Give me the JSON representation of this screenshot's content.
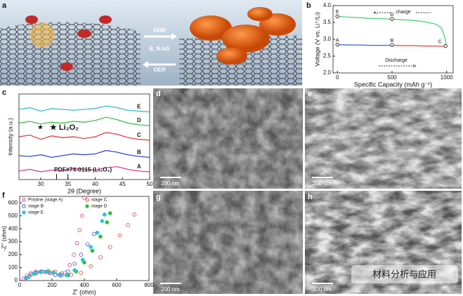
{
  "figure": {
    "labels": [
      "a",
      "b",
      "c",
      "d",
      "e",
      "f",
      "g",
      "h"
    ],
    "scheme": {
      "orr": "ORR",
      "bnbg": "B, N-bG",
      "oer": "OER"
    },
    "scale_bars": [
      "200 nm",
      "200 nm",
      "200 nm",
      "200 nm"
    ],
    "watermark": "材料分析与应用"
  },
  "chart_data": [
    {
      "type": "line",
      "xlabel": "Specific Capacity (mAh g⁻¹)",
      "ylabel": "Voltage (V vs. Li⁺/Li)",
      "xlim": [
        -40,
        1060
      ],
      "xticks": [
        0,
        500,
        1000
      ],
      "ylim": [
        2.0,
        4.0
      ],
      "yticks": [
        {
          "value": 2,
          "label": "2.0"
        },
        2.5,
        {
          "value": 3,
          "label": "3.0"
        },
        3.5,
        {
          "value": 4,
          "label": "4.0"
        }
      ],
      "annotations": [
        "charge",
        "Discharge"
      ],
      "series": [
        {
          "color": "#3a5bd9",
          "x": [
            0,
            100,
            200,
            300,
            400,
            500
          ],
          "values": [
            2.84,
            2.83,
            2.83,
            2.82,
            2.82,
            2.82
          ]
        },
        {
          "color": "#e0413a",
          "x": [
            500,
            600,
            700,
            800,
            900,
            1000
          ],
          "values": [
            2.82,
            2.81,
            2.81,
            2.8,
            2.8,
            2.79
          ]
        },
        {
          "color": "#3ecf6b",
          "x": [
            0,
            100,
            200,
            300,
            400,
            500,
            600,
            700,
            800,
            900,
            950,
            980,
            1000
          ],
          "values": [
            3.68,
            3.66,
            3.64,
            3.62,
            3.61,
            3.6,
            3.58,
            3.56,
            3.52,
            3.45,
            3.35,
            3.1,
            2.8
          ]
        }
      ],
      "points": {
        "labels": [
          "A",
          "B",
          "C",
          "D",
          "E"
        ],
        "x": [
          0,
          500,
          990,
          500,
          0
        ],
        "y": [
          2.84,
          2.83,
          2.8,
          3.6,
          3.68
        ]
      }
    },
    {
      "type": "line",
      "xlabel": "2θ (Degree)",
      "ylabel": "Intensity (a.u.)",
      "xlim": [
        26,
        50
      ],
      "xticks": [
        30,
        35,
        40,
        45,
        50
      ],
      "ylim": [
        0,
        100
      ],
      "x": [
        26,
        28,
        30,
        32,
        34,
        36,
        38,
        40,
        42,
        44,
        46,
        48,
        50
      ],
      "annotations": [
        "★",
        "★ Li₂O₂",
        "PDF#74-0115 (Li₂O₂)"
      ],
      "reference_peaks": [
        32.9,
        35.0
      ],
      "series": [
        {
          "name": "E",
          "color": "#26b5d6",
          "values": [
            82,
            84,
            80,
            83,
            82,
            81,
            82,
            83,
            86,
            84,
            81,
            80,
            79
          ]
        },
        {
          "name": "D",
          "color": "#2fbf3a",
          "values": [
            66,
            68,
            65,
            67,
            66,
            68,
            67,
            69,
            73,
            70,
            66,
            64,
            63
          ]
        },
        {
          "name": "C",
          "color": "#d9342b",
          "values": [
            50,
            52,
            47,
            51,
            49,
            50,
            48,
            50,
            55,
            53,
            49,
            47,
            46
          ]
        },
        {
          "name": "B",
          "color": "#2a3fc9",
          "values": [
            28,
            27,
            29,
            26,
            28,
            30,
            29,
            30,
            34,
            32,
            29,
            27,
            26
          ]
        },
        {
          "name": "A",
          "color": "#d6338f",
          "values": [
            10,
            12,
            9,
            11,
            10,
            13,
            12,
            11,
            14,
            15,
            12,
            10,
            9
          ]
        }
      ]
    },
    {
      "type": "scatter",
      "xlabel": "Z' (ohm)",
      "ylabel": "-Z'' (ohm)",
      "xlim": [
        0,
        800
      ],
      "xticks": [
        0,
        200,
        400,
        600,
        800
      ],
      "ylim": [
        0,
        650
      ],
      "yticks": [
        0,
        100,
        200,
        300,
        400,
        500,
        600
      ],
      "series": [
        {
          "name": "Pristine (stage A)",
          "color": "#d9339b",
          "filled": false,
          "x": [
            25,
            45,
            70,
            100,
            130,
            160,
            190,
            220,
            250,
            280,
            310,
            335,
            355,
            370,
            385,
            400
          ],
          "values": [
            15,
            40,
            58,
            68,
            70,
            67,
            58,
            45,
            40,
            60,
            120,
            200,
            290,
            390,
            500,
            640
          ]
        },
        {
          "name": "stage C",
          "color": "#e0413a",
          "filled": false,
          "x": [
            60,
            100,
            140,
            180,
            220,
            260,
            320,
            380,
            440,
            500,
            560,
            620,
            670,
            710
          ],
          "values": [
            30,
            55,
            68,
            72,
            68,
            55,
            45,
            60,
            110,
            180,
            260,
            350,
            430,
            510
          ]
        },
        {
          "name": "stage B",
          "color": "#3a4fd0",
          "filled": false,
          "x": [
            40,
            70,
            100,
            140,
            180,
            220,
            260,
            300,
            340,
            380,
            420,
            460
          ],
          "values": [
            20,
            48,
            62,
            68,
            62,
            45,
            40,
            70,
            130,
            200,
            280,
            360
          ]
        },
        {
          "name": "stage D",
          "color": "#2fbf3a",
          "filled": true,
          "x": [
            50,
            90,
            130,
            170,
            210,
            250,
            300,
            350,
            400,
            450,
            500,
            540,
            560
          ],
          "values": [
            25,
            55,
            68,
            70,
            62,
            48,
            42,
            70,
            140,
            230,
            340,
            450,
            520
          ]
        },
        {
          "name": "stage E",
          "color": "#26c5e6",
          "filled": true,
          "x": [
            45,
            85,
            125,
            165,
            205,
            245,
            290,
            340,
            390,
            440,
            480,
            510,
            525
          ],
          "values": [
            22,
            52,
            66,
            68,
            60,
            46,
            42,
            80,
            160,
            260,
            370,
            460,
            510
          ]
        }
      ]
    }
  ]
}
